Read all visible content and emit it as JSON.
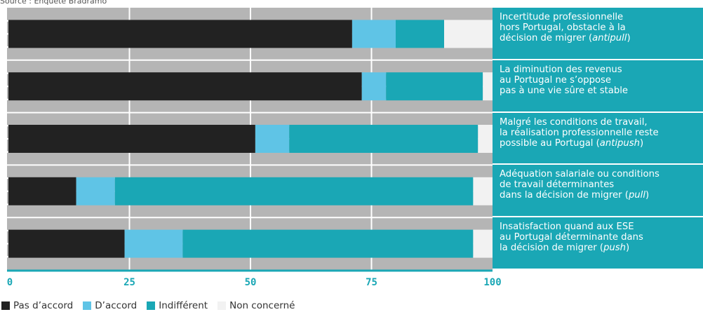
{
  "source_text": "Source : Enquête Bradramo",
  "chart_data": {
    "type": "bar",
    "orientation": "horizontal",
    "stacked": true,
    "categories": [
      [
        "Incertitude professionnelle",
        "hors Portugal, obstacle à la",
        "décision de migrer (|antipull|)"
      ],
      [
        "La diminution des revenus",
        "au Portugal ne s’oppose",
        "pas à une vie sûre et stable"
      ],
      [
        "Malgré les conditions de travail,",
        "la réalisation professionnelle reste",
        "possible au Portugal (|antipush|)"
      ],
      [
        "Adéquation salariale ou conditions",
        "de travail déterminantes",
        "dans la décision de migrer (|pull|)"
      ],
      [
        "Insatisfaction quand aux ESE",
        "au Portugal déterminante dans",
        "la décision de migrer (|push|)"
      ]
    ],
    "series": [
      {
        "name": "Pas d’accord",
        "color": "#222222",
        "values": [
          71,
          73,
          51,
          14,
          24
        ]
      },
      {
        "name": "D’accord",
        "color": "#5fc4e6",
        "values": [
          9,
          5,
          7,
          8,
          12
        ]
      },
      {
        "name": "Indifférent",
        "color": "#1aa7b5",
        "values": [
          10,
          20,
          39,
          74,
          60
        ]
      },
      {
        "name": "Non concerné",
        "color": "#f2f2f2",
        "values": [
          10,
          2,
          3,
          4,
          4
        ]
      }
    ],
    "xlim": [
      0,
      100
    ],
    "xticks": [
      "0",
      "25",
      "50",
      "75",
      "100"
    ],
    "grid": true,
    "legend_position": "bottom-left",
    "background_color": "#b5b5b5",
    "grid_color": "#ffffff",
    "axis_color": "#1aa7b5"
  }
}
